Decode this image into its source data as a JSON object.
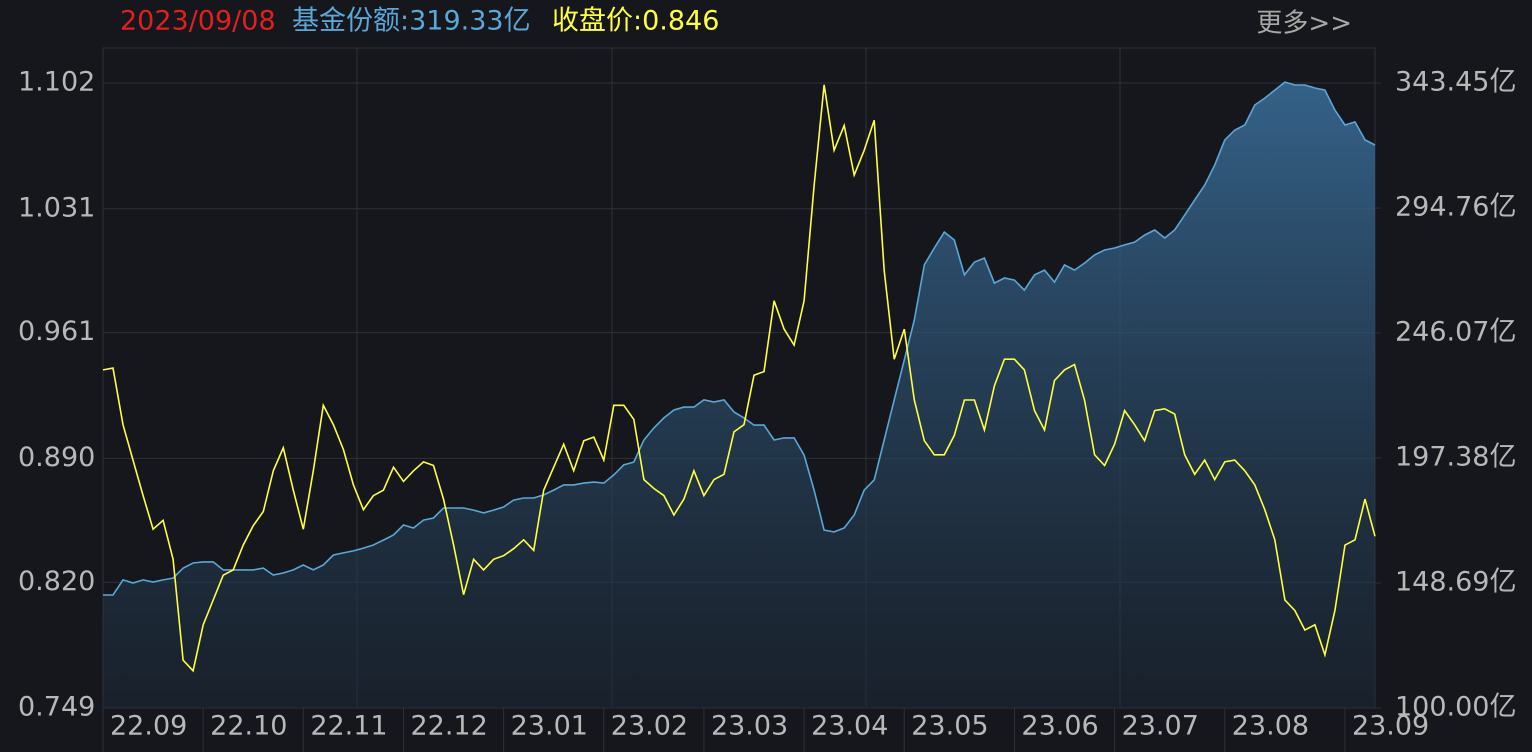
{
  "chart_data": {
    "type": "line",
    "header": {
      "date": "2023/09/08",
      "share": "基金份额:319.33亿",
      "close": "收盘价:0.846",
      "more": "更多>>"
    },
    "categories": [
      "22.09",
      null,
      null,
      null,
      null,
      null,
      null,
      null,
      null,
      null,
      "22.10",
      null,
      null,
      null,
      null,
      null,
      null,
      null,
      null,
      null,
      "22.11",
      null,
      null,
      null,
      null,
      null,
      null,
      null,
      null,
      null,
      "22.12",
      null,
      null,
      null,
      null,
      null,
      null,
      null,
      null,
      null,
      "23.01",
      null,
      null,
      null,
      null,
      null,
      null,
      null,
      null,
      null,
      "23.02",
      null,
      null,
      null,
      null,
      null,
      null,
      null,
      null,
      null,
      "23.03",
      null,
      null,
      null,
      null,
      null,
      null,
      null,
      null,
      null,
      "23.04",
      null,
      null,
      null,
      null,
      null,
      null,
      null,
      null,
      null,
      "23.05",
      null,
      null,
      null,
      null,
      null,
      null,
      null,
      null,
      null,
      null,
      "23.06",
      null,
      null,
      null,
      null,
      null,
      null,
      null,
      null,
      null,
      "23.07",
      null,
      null,
      null,
      null,
      null,
      null,
      null,
      null,
      null,
      null,
      "23.08",
      null,
      null,
      null,
      null,
      null,
      null,
      null,
      null,
      null,
      null,
      null,
      "23.09",
      null,
      null,
      null
    ],
    "series": [
      {
        "color": "#5aa7d8",
        "axis": "y2",
        "area": true,
        "values": [
          144.0,
          144.0,
          149.9,
          148.7,
          149.9,
          149.1,
          149.9,
          150.6,
          154.5,
          156.5,
          156.9,
          156.9,
          153.8,
          153.8,
          153.8,
          153.8,
          154.5,
          151.8,
          152.6,
          153.8,
          155.7,
          153.8,
          155.7,
          159.6,
          160.4,
          161.2,
          162.3,
          163.5,
          165.4,
          167.4,
          171.3,
          170.1,
          173.2,
          174.0,
          177.9,
          177.9,
          177.9,
          177.1,
          176.0,
          177.1,
          178.3,
          181.0,
          181.8,
          181.8,
          183.0,
          184.9,
          186.9,
          186.9,
          187.6,
          188.0,
          187.6,
          190.8,
          194.7,
          195.8,
          204.4,
          209.1,
          213.0,
          216.1,
          217.2,
          217.2,
          220.0,
          219.2,
          220.0,
          215.3,
          213.0,
          210.2,
          210.2,
          204.4,
          205.2,
          205.2,
          198.5,
          184.9,
          169.3,
          168.6,
          170.1,
          175.2,
          184.9,
          188.8,
          204.4,
          220.0,
          235.6,
          251.1,
          272.6,
          279.2,
          285.4,
          282.3,
          268.7,
          273.7,
          275.3,
          265.5,
          267.5,
          266.7,
          262.8,
          268.7,
          270.6,
          265.9,
          272.6,
          270.6,
          273.3,
          276.5,
          278.4,
          279.2,
          280.4,
          281.5,
          284.2,
          286.2,
          283.1,
          286.2,
          292.0,
          297.9,
          303.7,
          311.5,
          321.3,
          325.1,
          327.1,
          334.9,
          337.6,
          340.7,
          343.8,
          342.7,
          342.7,
          341.5,
          340.7,
          332.9,
          327.1,
          328.3,
          321.3,
          319.33
        ]
      },
      {
        "color": "#ffff40",
        "axis": "y",
        "area": false,
        "values": [
          0.94,
          0.941,
          0.909,
          0.889,
          0.869,
          0.85,
          0.855,
          0.833,
          0.776,
          0.77,
          0.796,
          0.81,
          0.824,
          0.827,
          0.841,
          0.852,
          0.86,
          0.883,
          0.896,
          0.872,
          0.85,
          0.883,
          0.92,
          0.909,
          0.895,
          0.875,
          0.861,
          0.869,
          0.872,
          0.885,
          0.877,
          0.883,
          0.888,
          0.886,
          0.867,
          0.841,
          0.813,
          0.833,
          0.827,
          0.833,
          0.835,
          0.839,
          0.844,
          0.838,
          0.872,
          0.885,
          0.898,
          0.883,
          0.9,
          0.902,
          0.889,
          0.92,
          0.92,
          0.912,
          0.878,
          0.873,
          0.869,
          0.858,
          0.867,
          0.883,
          0.869,
          0.878,
          0.881,
          0.905,
          0.909,
          0.937,
          0.939,
          0.979,
          0.963,
          0.954,
          0.979,
          1.044,
          1.101,
          1.064,
          1.078,
          1.05,
          1.064,
          1.081,
          0.996,
          0.946,
          0.963,
          0.923,
          0.9,
          0.892,
          0.892,
          0.903,
          0.923,
          0.923,
          0.906,
          0.931,
          0.946,
          0.946,
          0.94,
          0.917,
          0.906,
          0.934,
          0.94,
          0.943,
          0.923,
          0.892,
          0.886,
          0.898,
          0.917,
          0.909,
          0.9,
          0.917,
          0.918,
          0.915,
          0.892,
          0.881,
          0.889,
          0.878,
          0.888,
          0.889,
          0.883,
          0.875,
          0.861,
          0.844,
          0.81,
          0.804,
          0.793,
          0.796,
          0.779,
          0.804,
          0.841,
          0.844,
          0.867,
          0.846
        ]
      }
    ],
    "ylim": [
      0.749,
      1.1218
    ],
    "yticks": [
      0.749,
      {
        "value": 0.82,
        "label": "0.820"
      },
      {
        "value": 0.89,
        "label": "0.890"
      },
      0.961,
      1.031,
      1.102
    ],
    "y2lim": [
      100,
      357.1
    ],
    "y2ticks": [
      {
        "value": 100,
        "label": "100.00亿"
      },
      {
        "value": 148.69,
        "label": "148.69亿"
      },
      {
        "value": 197.38,
        "label": "197.38亿"
      },
      {
        "value": 246.07,
        "label": "246.07亿"
      },
      {
        "value": 294.76,
        "label": "294.76亿"
      },
      {
        "value": 343.45,
        "label": "343.45亿"
      }
    ],
    "grid": true
  }
}
